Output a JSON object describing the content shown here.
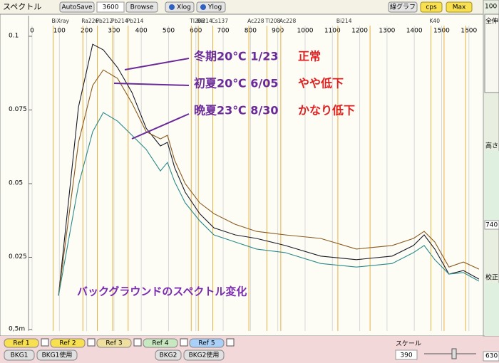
{
  "toolbar": {
    "title": "スペクトル",
    "autosave": "AutoSave",
    "time": "3600",
    "browse": "Browse",
    "xlog": "Xlog",
    "ylog": "Ylog",
    "graph_mode": "線グラフ",
    "unit": "cps",
    "max": "Max"
  },
  "chart_data": {
    "type": "line",
    "x": [
      97,
      170,
      222,
      261,
      313,
      366,
      418,
      470,
      496,
      522,
      561,
      614,
      666,
      744,
      822,
      927,
      1057,
      1188,
      1319,
      1397,
      1436,
      1475,
      1527,
      1580,
      1637
    ],
    "series": [
      {
        "color": "#1a1a2a",
        "values": [
          0.012,
          0.076,
          0.0973,
          0.0954,
          0.0894,
          0.0809,
          0.0688,
          0.0628,
          0.064,
          0.0555,
          0.0471,
          0.0398,
          0.035,
          0.0326,
          0.0314,
          0.029,
          0.0254,
          0.0242,
          0.0254,
          0.029,
          0.0326,
          0.0278,
          0.0193,
          0.0205,
          0.0176
        ]
      },
      {
        "color": "#8a5a1e",
        "values": [
          0.012,
          0.064,
          0.0833,
          0.0886,
          0.0857,
          0.0773,
          0.0676,
          0.0652,
          0.0664,
          0.058,
          0.05,
          0.0435,
          0.0398,
          0.0362,
          0.0338,
          0.0326,
          0.0314,
          0.0278,
          0.029,
          0.0314,
          0.0338,
          0.0302,
          0.0217,
          0.0234,
          0.021
        ]
      },
      {
        "color": "#2a8a8a",
        "values": [
          0.012,
          0.0495,
          0.0676,
          0.0741,
          0.0712,
          0.0664,
          0.0616,
          0.0543,
          0.0572,
          0.0507,
          0.0435,
          0.0374,
          0.0326,
          0.0302,
          0.0278,
          0.0266,
          0.0229,
          0.0217,
          0.0229,
          0.0266,
          0.029,
          0.0242,
          0.0193,
          0.0198,
          0.0169
        ]
      }
    ],
    "xlim": [
      -13,
      1645
    ],
    "xticks": [
      0,
      100,
      200,
      300,
      400,
      500,
      600,
      700,
      800,
      900,
      1000,
      1100,
      1200,
      1300,
      1400,
      1500,
      1600
    ],
    "ylim": [
      0,
      0.107
    ],
    "yticks": [
      {
        "value": 0.0005,
        "label": "0,5m"
      },
      0.025,
      0.05,
      0.075,
      0.1
    ],
    "grid": true,
    "line_color": "#e8b040",
    "isotope_lines": [
      {
        "label": "BiXray",
        "energy": 77
      },
      {
        "label": "Ra226",
        "energy": 186
      },
      {
        "label": "Pb212",
        "energy": 239
      },
      {
        "label": "Pb214",
        "energy": 295
      },
      {
        "label": "Pb214",
        "energy": 352
      },
      {
        "label": "Tl208",
        "energy": 583
      },
      {
        "label": "Bi214",
        "energy": 609
      },
      {
        "label": "Cs137",
        "energy": 662
      },
      {
        "label": "Ac228",
        "energy": 794
      },
      {
        "label": "Tl208",
        "energy": 860
      },
      {
        "label": "Ac228",
        "energy": 911
      },
      {
        "label": "Bi214",
        "energy": 1120
      },
      {
        "label": "K40",
        "energy": 1461
      },
      {
        "label": null,
        "energy": 1238
      },
      {
        "label": null,
        "energy": 1509
      },
      {
        "label": null,
        "energy": 1588
      }
    ],
    "annotations": [
      {
        "text": "冬期20℃  1/23",
        "status": "正常"
      },
      {
        "text": "初夏20℃  6/05",
        "status": "やや低下"
      },
      {
        "text": "晩夏23℃  8/30",
        "status": "かなり低下"
      }
    ],
    "caption": "バックグラウンドのスペクトル変化"
  },
  "bottom_bar": {
    "refs": [
      "Ref 1",
      "Ref 2",
      "Ref 3",
      "Ref 4",
      "Ref 5"
    ],
    "bkg": [
      "BKG1",
      "BKG1使用",
      "BKG2",
      "BKG2使用"
    ],
    "scale_label": "スケール",
    "scale_value": "390"
  },
  "side_panel": {
    "top_value": "100",
    "full": "全伸",
    "height": "高さ",
    "height_value": "740",
    "calib": "校正",
    "calib_value": "630"
  }
}
